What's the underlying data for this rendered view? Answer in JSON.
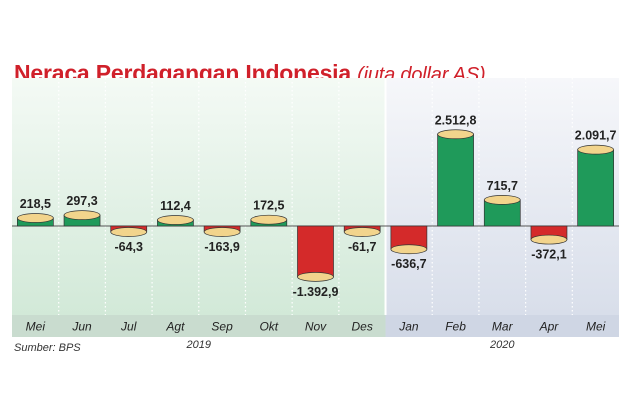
{
  "chart_data": {
    "type": "bar",
    "title": "Neraca Perdagangan Indonesia",
    "unit": "(juta dollar AS)",
    "categories": [
      "Mei",
      "Jun",
      "Jul",
      "Agt",
      "Sep",
      "Okt",
      "Nov",
      "Des",
      "Jan",
      "Feb",
      "Mar",
      "Apr",
      "Mei"
    ],
    "values": [
      218.5,
      297.3,
      -64.3,
      112.4,
      -163.9,
      172.5,
      -1392.9,
      -61.7,
      -636.7,
      2512.8,
      715.7,
      -372.1,
      2091.7
    ],
    "value_labels": [
      "218,5",
      "297,3",
      "-64,3",
      "112,4",
      "-163,9",
      "172,5",
      "-1.392,9",
      "-61,7",
      "-636,7",
      "2.512,8",
      "715,7",
      "-372,1",
      "2.091,7"
    ],
    "groups": [
      {
        "label": "2019",
        "start": 0,
        "end": 7
      },
      {
        "label": "2020",
        "start": 8,
        "end": 12
      }
    ],
    "colors": {
      "positive": "#1f9a5a",
      "negative": "#d42a2a",
      "cap": "#f2d48c",
      "background_2019": "#dcefe1",
      "background_2020": "#e1e6ef",
      "title": "#d0202a"
    },
    "grid": false,
    "source": "Sumber: BPS"
  }
}
